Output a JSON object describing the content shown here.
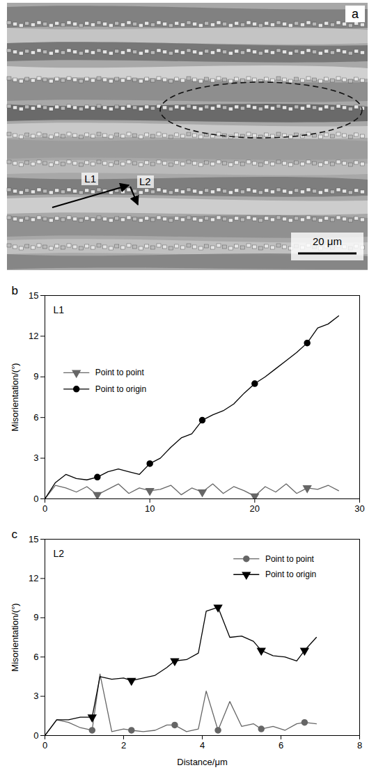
{
  "micrograph": {
    "panel_label": "a",
    "line_labels": [
      "L1",
      "L2"
    ],
    "scale_bar": "20 μm"
  },
  "chart_data": [
    {
      "type": "line",
      "title": "L1",
      "panel_label": "b",
      "y_label": "Misorientation/(°)",
      "x": [
        0,
        1,
        2,
        3,
        4,
        5,
        6,
        7,
        8,
        9,
        10,
        11,
        12,
        13,
        14,
        15,
        16,
        17,
        18,
        19,
        20,
        21,
        22,
        23,
        24,
        25,
        26,
        27,
        28
      ],
      "series": [
        {
          "name": "Point to point",
          "color": "#666666",
          "marker": "triangle-down",
          "line_style": "solid",
          "values": [
            0,
            1.0,
            0.8,
            0.5,
            0.9,
            0.3,
            0.7,
            1.1,
            0.4,
            0.8,
            0.6,
            0.7,
            1.0,
            0.3,
            0.8,
            0.5,
            1.1,
            0.4,
            0.9,
            0.6,
            0.2,
            0.9,
            0.5,
            1.1,
            0.4,
            0.8,
            0.7,
            1.0,
            0.6
          ]
        },
        {
          "name": "Point to origin",
          "color": "#000000",
          "marker": "circle",
          "line_style": "solid",
          "values": [
            0,
            1.2,
            1.8,
            1.5,
            1.4,
            1.6,
            2.0,
            2.2,
            2.0,
            1.8,
            2.6,
            3.0,
            3.8,
            4.5,
            4.8,
            5.8,
            6.2,
            6.5,
            7.0,
            7.8,
            8.5,
            9.0,
            9.6,
            10.2,
            10.8,
            11.5,
            12.6,
            12.9,
            13.5
          ]
        }
      ],
      "xlim": [
        0,
        30
      ],
      "xticks": [
        0,
        10,
        20,
        30
      ],
      "ylim": [
        0,
        15
      ],
      "yticks": [
        0,
        3,
        6,
        9,
        12,
        15
      ],
      "grid": false,
      "legend": "left"
    },
    {
      "type": "line",
      "title": "L2",
      "panel_label": "c",
      "x_label": "Distance/μm",
      "y_label": "Misorientation/(°)",
      "x": [
        0,
        0.3,
        0.6,
        0.9,
        1.2,
        1.4,
        1.7,
        2.0,
        2.2,
        2.5,
        2.8,
        3.1,
        3.3,
        3.6,
        3.9,
        4.1,
        4.4,
        4.7,
        5.0,
        5.3,
        5.5,
        5.8,
        6.1,
        6.4,
        6.6,
        6.9
      ],
      "series": [
        {
          "name": "Point to point",
          "color": "#666666",
          "marker": "circle",
          "line_style": "solid",
          "values": [
            0,
            1.2,
            1.0,
            0.6,
            0.4,
            4.7,
            0.3,
            0.5,
            0.4,
            0.3,
            0.4,
            0.8,
            0.8,
            0.3,
            0.5,
            3.4,
            0.4,
            2.6,
            0.7,
            0.9,
            0.5,
            0.7,
            0.4,
            0.9,
            1.0,
            0.9
          ]
        },
        {
          "name": "Point to origin",
          "color": "#000000",
          "marker": "triangle-down",
          "line_style": "solid",
          "values": [
            0,
            1.2,
            1.2,
            1.4,
            1.4,
            4.5,
            4.3,
            4.4,
            4.2,
            4.4,
            4.6,
            5.2,
            5.7,
            5.8,
            6.3,
            9.5,
            9.8,
            7.5,
            7.6,
            7.2,
            6.5,
            6.1,
            6.0,
            5.7,
            6.5,
            7.5
          ]
        }
      ],
      "xlim": [
        0,
        8
      ],
      "xticks": [
        0,
        2,
        4,
        6,
        8
      ],
      "ylim": [
        0,
        15
      ],
      "yticks": [
        0,
        3,
        6,
        9,
        12,
        15
      ],
      "grid": false,
      "legend": "top-right"
    }
  ]
}
